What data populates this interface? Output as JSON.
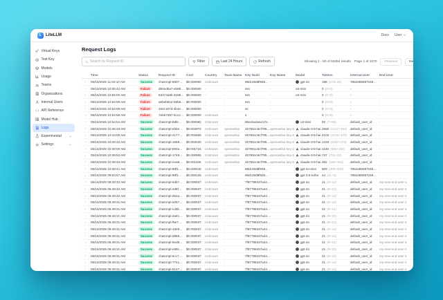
{
  "window": {
    "brand": "LiteLLM",
    "nav": {
      "docs": "Docs",
      "user": "User"
    }
  },
  "colors": {
    "accent": "#1d4ed8",
    "sidebar_active_bg": "#dbeafe",
    "success_bg": "#d1fae5",
    "success_text": "#059669",
    "failure_bg": "#fee2e2",
    "failure_text": "#dc2626",
    "background_top": "#49d8ee",
    "background_bottom": "#0d9ac0"
  },
  "sidebar": {
    "items": [
      {
        "label": "Virtual Keys",
        "icon": "key",
        "active": false,
        "chevron": false
      },
      {
        "label": "Test Key",
        "icon": "test-key",
        "active": false,
        "chevron": false
      },
      {
        "label": "Models",
        "icon": "models",
        "active": false,
        "chevron": false
      },
      {
        "label": "Usage",
        "icon": "usage",
        "active": false,
        "chevron": false
      },
      {
        "label": "Teams",
        "icon": "teams",
        "active": false,
        "chevron": false
      },
      {
        "label": "Organizations",
        "icon": "organizations",
        "active": false,
        "chevron": false
      },
      {
        "label": "Internal Users",
        "icon": "internal-users",
        "active": false,
        "chevron": false
      },
      {
        "label": "API Reference",
        "icon": "api-reference",
        "active": false,
        "chevron": false
      },
      {
        "label": "Model Hub",
        "icon": "model-hub",
        "active": false,
        "chevron": false
      },
      {
        "label": "Logs",
        "icon": "logs",
        "active": true,
        "chevron": false
      },
      {
        "label": "Experimental",
        "icon": "experimental",
        "active": false,
        "chevron": true
      },
      {
        "label": "Settings",
        "icon": "settings",
        "active": false,
        "chevron": true
      }
    ]
  },
  "main": {
    "title": "Request Logs",
    "toolbar": {
      "search_placeholder": "Search by Request ID",
      "filter_label": "Filter",
      "time_range_label": "Last 24 Hours",
      "refresh_label": "Refresh"
    },
    "pagination": {
      "showing": "Showing 1 - 50 of 53494 results",
      "page": "Page 1 of 1070",
      "previous": "Previous",
      "next": "Next"
    },
    "table": {
      "columns": [
        "Time",
        "Status",
        "Request ID",
        "Cost",
        "Country",
        "Team Name",
        "Key Hash",
        "Key Name",
        "Model",
        "Tokens",
        "Internal User",
        "End User"
      ],
      "rows": [
        {
          "expanded": false,
          "time": "05/15/2025 11:02:10 AM",
          "status": "Success",
          "request_id": "chatcmpl-8807…",
          "cost": "$0.000090",
          "country": "Unknown",
          "team_name": "-",
          "key_hash": "88dc28d8f936…",
          "key_name": "-",
          "provider": "openai",
          "model": "gpt-4o",
          "tokens": "198",
          "tokens_detail": "(173+25)",
          "internal_user": "7854485087248…",
          "end_user": "-"
        },
        {
          "expanded": false,
          "time": "05/15/2025 10:55:42 AM",
          "status": "Failure",
          "request_id": "d84ed5a7-eb88…",
          "cost": "$0.000000",
          "country": "-",
          "team_name": "-",
          "key_hash": "sss",
          "key_name": "-",
          "provider": "",
          "model": "o3-mini",
          "tokens": "0",
          "tokens_detail": "(0+0)",
          "internal_user": "-",
          "end_user": "-"
        },
        {
          "expanded": false,
          "time": "05/15/2025 10:55:00 AM",
          "status": "Failure",
          "request_id": "63474a9b-3188…",
          "cost": "$0.000000",
          "country": "-",
          "team_name": "-",
          "key_hash": "sss",
          "key_name": "-",
          "provider": "",
          "model": "o3-mini",
          "tokens": "0",
          "tokens_detail": "(0+0)",
          "internal_user": "-",
          "end_user": "-"
        },
        {
          "expanded": false,
          "time": "05/15/2025 10:54:59 AM",
          "status": "Failure",
          "request_id": "a5beb81d-b8b8…",
          "cost": "$0.000000",
          "country": "-",
          "team_name": "-",
          "key_hash": "sss",
          "key_name": "-",
          "provider": "",
          "model": "",
          "tokens": "0",
          "tokens_detail": "(0+0)",
          "internal_user": "-",
          "end_user": "-"
        },
        {
          "expanded": false,
          "time": "05/15/2025 10:54:59 AM",
          "status": "Failure",
          "request_id": "334c187d-4b4e…",
          "cost": "$0.000000",
          "country": "-",
          "team_name": "-",
          "key_hash": "ss",
          "key_name": "-",
          "provider": "",
          "model": "",
          "tokens": "0",
          "tokens_detail": "(0+0)",
          "internal_user": "-",
          "end_user": "-"
        },
        {
          "expanded": false,
          "time": "05/15/2025 10:54:58 AM",
          "status": "Failure",
          "request_id": "7eb67387-6cc2…",
          "cost": "$0.000000",
          "country": "Unknown",
          "team_name": "-",
          "key_hash": "s",
          "key_name": "-",
          "provider": "",
          "model": "",
          "tokens": "0",
          "tokens_detail": "(0+0)",
          "internal_user": "-",
          "end_user": "-"
        },
        {
          "expanded": false,
          "time": "05/15/2025 10:54:54 AM",
          "status": "Success",
          "request_id": "chatcmpl-b8fe…",
          "cost": "$0.000382",
          "country": "Unknown",
          "team_name": "-",
          "key_hash": "86ec5a2eac17e…",
          "key_name": "-",
          "provider": "openai",
          "model": "o3-mini",
          "tokens": "92",
          "tokens_detail": "(7+85)",
          "internal_user": "default_user_id",
          "end_user": "-"
        },
        {
          "expanded": false,
          "time": "05/15/2025 10:45:49 AM",
          "status": "Success",
          "request_id": "chatcmpl-ebbe…",
          "cost": "$0.003074",
          "country": "Unknown",
          "team_name": "openwebui",
          "key_hash": "467651c6cf795…",
          "key_name": "openwebui-key-2",
          "provider": "anthropic",
          "model": "claude-3-5-hai…",
          "tokens": "2580",
          "tokens_detail": "(2127+453)",
          "internal_user": "default_user_id",
          "end_user": "-"
        },
        {
          "expanded": false,
          "time": "05/15/2025 10:43:00 AM",
          "status": "Success",
          "request_id": "chatcmpl-4177…",
          "cost": "$0.002666",
          "country": "Unknown",
          "team_name": "openwebui",
          "key_hash": "467651c6cf795…",
          "key_name": "openwebui-key-2",
          "provider": "anthropic",
          "model": "claude-3-5-hai…",
          "tokens": "2102",
          "tokens_detail": "(1732+370)",
          "internal_user": "default_user_id",
          "end_user": "-"
        },
        {
          "expanded": true,
          "time": "05/15/2025 10:40:33 AM",
          "status": "Success",
          "request_id": "chatcmpl-1858…",
          "cost": "$0.002030",
          "country": "Unknown",
          "team_name": "openwebui",
          "key_hash": "467651c6cf795…",
          "key_name": "openwebui-key-2",
          "provider": "anthropic",
          "model": "claude-3-5-hai…",
          "tokens": "1433",
          "tokens_detail": "(1157+276)",
          "internal_user": "default_user_id",
          "end_user": "-"
        },
        {
          "expanded": true,
          "time": "05/15/2025 10:40:00 AM",
          "status": "Success",
          "request_id": "chatcmpl-883a…",
          "cost": "$0.001724",
          "country": "Unknown",
          "team_name": "openwebui",
          "key_hash": "467651c6cf795…",
          "key_name": "openwebui-key-2",
          "provider": "anthropic",
          "model": "claude-3-5-hai…",
          "tokens": "1139",
          "tokens_detail": "(885+254)",
          "internal_user": "default_user_id",
          "end_user": "-"
        },
        {
          "expanded": false,
          "time": "05/15/2025 10:39:53 AM",
          "status": "Success",
          "request_id": "chatcmpl-1748…",
          "cost": "$0.000955",
          "country": "Unknown",
          "team_name": "openwebui",
          "key_hash": "467651c6cf795…",
          "key_name": "openwebui-key-2",
          "provider": "anthropic",
          "model": "claude-3-5-hai…",
          "tokens": "727",
          "tokens_detail": "(704+23)",
          "internal_user": "default_user_id",
          "end_user": "-"
        },
        {
          "expanded": false,
          "time": "05/15/2025 10:39:46 AM",
          "status": "Success",
          "request_id": "chatcmpl-eea8…",
          "cost": "$0.001156",
          "country": "Unknown",
          "team_name": "openwebui",
          "key_hash": "467651c6cf795…",
          "key_name": "openwebui-key-2",
          "provider": "anthropic",
          "model": "claude-3-5-hai…",
          "tokens": "482",
          "tokens_detail": "(180+302)",
          "internal_user": "default_user_id",
          "end_user": "-"
        },
        {
          "expanded": false,
          "time": "05/15/2025 10:38:41 AM",
          "status": "Success",
          "request_id": "chatcmpl-88f1…",
          "cost": "$0.000445",
          "country": "Unknown",
          "team_name": "-",
          "key_hash": "88dc28d8f936…",
          "key_name": "-",
          "provider": "openai",
          "model": "gpt-4o-mini",
          "tokens": "809",
          "tokens_detail": "(209+600)",
          "internal_user": "7854485087248…",
          "end_user": "-"
        },
        {
          "expanded": false,
          "time": "05/15/2025 09:53:57 AM",
          "status": "Success",
          "request_id": "chatcmpl-88f1…",
          "cost": "$0.000125",
          "country": "Unknown",
          "team_name": "-",
          "key_hash": "88dc28d8f936…",
          "key_name": "-",
          "provider": "openai",
          "model": "gpt-3.5-turbo",
          "tokens": "44",
          "tokens_detail": "(41+3)",
          "internal_user": "7854485087248…",
          "end_user": "-"
        },
        {
          "expanded": false,
          "time": "05/15/2025 08:49:32 AM",
          "status": "Success",
          "request_id": "chatcmpl-6db7…",
          "cost": "$0.000037",
          "country": "Unknown",
          "team_name": "-",
          "key_hash": "7f87798437a44…",
          "key_name": "-",
          "provider": "openai",
          "model": "gpt-4o",
          "tokens": "21",
          "tokens_detail": "(9+12)",
          "internal_user": "default_user_id",
          "end_user": "my-new-end-user-1"
        },
        {
          "expanded": false,
          "time": "05/15/2025 08:49:32 AM",
          "status": "Success",
          "request_id": "chatcmpl-2d8f…",
          "cost": "$0.000037",
          "country": "Unknown",
          "team_name": "-",
          "key_hash": "7f87798437a44…",
          "key_name": "-",
          "provider": "openai",
          "model": "gpt-4o",
          "tokens": "21",
          "tokens_detail": "(9+12)",
          "internal_user": "default_user_id",
          "end_user": "my-new-end-user-1"
        },
        {
          "expanded": false,
          "time": "05/15/2025 08:49:32 AM",
          "status": "Success",
          "request_id": "chatcmpl-d52a…",
          "cost": "$0.000037",
          "country": "Unknown",
          "team_name": "-",
          "key_hash": "7f87798437a44…",
          "key_name": "-",
          "provider": "openai",
          "model": "gpt-4o",
          "tokens": "21",
          "tokens_detail": "(9+12)",
          "internal_user": "default_user_id",
          "end_user": "my-new-end-user-1"
        },
        {
          "expanded": false,
          "time": "05/15/2025 08:49:31 AM",
          "status": "Success",
          "request_id": "chatcmpl-a067…",
          "cost": "$0.000037",
          "country": "Unknown",
          "team_name": "-",
          "key_hash": "7f87798437a44…",
          "key_name": "-",
          "provider": "openai",
          "model": "gpt-4o",
          "tokens": "21",
          "tokens_detail": "(9+12)",
          "internal_user": "default_user_id",
          "end_user": "my-new-end-user-1"
        },
        {
          "expanded": false,
          "time": "05/15/2025 08:49:31 AM",
          "status": "Success",
          "request_id": "chatcmpl-cd3b…",
          "cost": "$0.000037",
          "country": "Unknown",
          "team_name": "-",
          "key_hash": "7f87798437a44…",
          "key_name": "-",
          "provider": "openai",
          "model": "gpt-4o",
          "tokens": "21",
          "tokens_detail": "(9+12)",
          "internal_user": "default_user_id",
          "end_user": "my-new-end-user-1"
        },
        {
          "expanded": false,
          "time": "05/15/2025 08:49:31 AM",
          "status": "Success",
          "request_id": "chatcmpl-da81…",
          "cost": "$0.000037",
          "country": "Unknown",
          "team_name": "-",
          "key_hash": "7f87798437a44…",
          "key_name": "-",
          "provider": "openai",
          "model": "gpt-4o",
          "tokens": "21",
          "tokens_detail": "(9+12)",
          "internal_user": "default_user_id",
          "end_user": "my-new-end-user-1"
        },
        {
          "expanded": false,
          "time": "05/15/2025 08:49:31 AM",
          "status": "Success",
          "request_id": "chatcmpl-f5e7…",
          "cost": "$0.000037",
          "country": "Unknown",
          "team_name": "-",
          "key_hash": "7f87798437a44…",
          "key_name": "-",
          "provider": "openai",
          "model": "gpt-4o",
          "tokens": "21",
          "tokens_detail": "(9+12)",
          "internal_user": "default_user_id",
          "end_user": "my-new-end-user-1"
        },
        {
          "expanded": false,
          "time": "05/15/2025 08:49:31 AM",
          "status": "Success",
          "request_id": "chatcmpl-43e9…",
          "cost": "$0.000037",
          "country": "Unknown",
          "team_name": "-",
          "key_hash": "7f87798437a44…",
          "key_name": "-",
          "provider": "openai",
          "model": "gpt-4o",
          "tokens": "21",
          "tokens_detail": "(9+12)",
          "internal_user": "default_user_id",
          "end_user": "my-new-end-user-1"
        },
        {
          "expanded": false,
          "time": "05/15/2025 08:49:31 AM",
          "status": "Success",
          "request_id": "chatcmpl-d865…",
          "cost": "$0.000037",
          "country": "Unknown",
          "team_name": "-",
          "key_hash": "7f87798437a44…",
          "key_name": "-",
          "provider": "openai",
          "model": "gpt-4o",
          "tokens": "21",
          "tokens_detail": "(9+12)",
          "internal_user": "default_user_id",
          "end_user": "my-new-end-user-1"
        },
        {
          "expanded": false,
          "time": "05/15/2025 08:49:31 AM",
          "status": "Success",
          "request_id": "chatcmpl-6ed8…",
          "cost": "$0.000037",
          "country": "Unknown",
          "team_name": "-",
          "key_hash": "7f87798437a44…",
          "key_name": "-",
          "provider": "openai",
          "model": "gpt-4o",
          "tokens": "21",
          "tokens_detail": "(9+12)",
          "internal_user": "default_user_id",
          "end_user": "my-new-end-user-1"
        },
        {
          "expanded": false,
          "time": "05/15/2025 08:49:31 AM",
          "status": "Success",
          "request_id": "chatcmpl-e891…",
          "cost": "$0.000037",
          "country": "Unknown",
          "team_name": "-",
          "key_hash": "7f87798437a44…",
          "key_name": "-",
          "provider": "openai",
          "model": "gpt-4o",
          "tokens": "21",
          "tokens_detail": "(9+12)",
          "internal_user": "default_user_id",
          "end_user": "my-new-end-user-1"
        },
        {
          "expanded": false,
          "time": "05/15/2025 08:49:31 AM",
          "status": "Success",
          "request_id": "chatcmpl-6cc7…",
          "cost": "$0.000037",
          "country": "Unknown",
          "team_name": "-",
          "key_hash": "7f87798437a44…",
          "key_name": "-",
          "provider": "openai",
          "model": "gpt-4o",
          "tokens": "21",
          "tokens_detail": "(9+12)",
          "internal_user": "default_user_id",
          "end_user": "my-new-end-user-1"
        },
        {
          "expanded": false,
          "time": "05/15/2025 08:49:31 AM",
          "status": "Success",
          "request_id": "chatcmpl-77e1…",
          "cost": "$0.000037",
          "country": "Unknown",
          "team_name": "-",
          "key_hash": "7f87798437a44…",
          "key_name": "-",
          "provider": "openai",
          "model": "gpt-4o",
          "tokens": "21",
          "tokens_detail": "(9+12)",
          "internal_user": "default_user_id",
          "end_user": "my-new-end-user-1"
        },
        {
          "expanded": false,
          "time": "05/15/2025 08:49:31 AM",
          "status": "Success",
          "request_id": "chatcmpl-6147…",
          "cost": "$0.000037",
          "country": "Unknown",
          "team_name": "-",
          "key_hash": "7f87798437a44…",
          "key_name": "-",
          "provider": "openai",
          "model": "gpt-4o",
          "tokens": "21",
          "tokens_detail": "(9+12)",
          "internal_user": "default_user_id",
          "end_user": "my-new-end-user-1"
        },
        {
          "expanded": false,
          "time": "05/15/2025 08:49:31 AM",
          "status": "Success",
          "request_id": "chatcmpl-0968…",
          "cost": "$0.000037",
          "country": "Unknown",
          "team_name": "-",
          "key_hash": "7f87798437a44…",
          "key_name": "-",
          "provider": "openai",
          "model": "gpt-4o",
          "tokens": "21",
          "tokens_detail": "(9+12)",
          "internal_user": "default_user_id",
          "end_user": "my-new-end-user-1"
        },
        {
          "expanded": false,
          "time": "05/15/2025 08:49:31 AM",
          "status": "Success",
          "request_id": "chatcmpl-e373…",
          "cost": "$0.000037",
          "country": "Unknown",
          "team_name": "-",
          "key_hash": "7f87798437a44…",
          "key_name": "-",
          "provider": "openai",
          "model": "gpt-4o",
          "tokens": "21",
          "tokens_detail": "(9+12)",
          "internal_user": "default_user_id",
          "end_user": "my-new-end-user-1"
        }
      ]
    }
  }
}
